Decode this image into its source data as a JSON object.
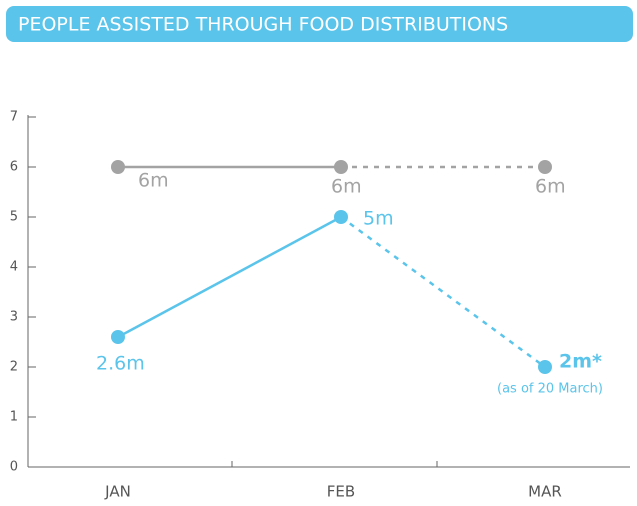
{
  "chart_data": {
    "type": "line",
    "title": "PEOPLE ASSISTED THROUGH FOOD DISTRIBUTIONS",
    "categories": [
      "JAN",
      "FEB",
      "MAR"
    ],
    "series": [
      {
        "color": "#a3a3a3",
        "values": [
          6,
          6,
          6
        ],
        "value_labels": [
          "6m",
          "6m",
          "6m"
        ],
        "dash_from": 1
      },
      {
        "color": "#5bc4ea",
        "values": [
          2.6,
          5,
          2
        ],
        "value_labels": [
          "2.6m",
          "5m",
          "2m*"
        ],
        "dash_from": 1
      }
    ],
    "annotation": "(as of 20 March)",
    "ylim": [
      0,
      7
    ],
    "yticks": [
      0,
      1,
      2,
      3,
      4,
      5,
      6,
      7
    ]
  }
}
